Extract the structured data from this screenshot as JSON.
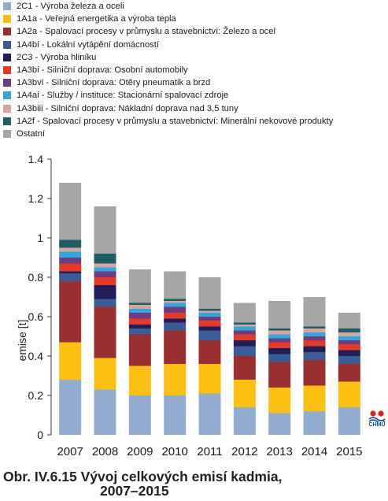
{
  "chart_data": {
    "type": "bar",
    "stacked": true,
    "categories": [
      "2007",
      "2008",
      "2009",
      "2010",
      "2011",
      "2012",
      "2013",
      "2014",
      "2015"
    ],
    "ylabel": "emise [t]",
    "ylim": [
      0,
      1.4
    ],
    "yticks": [
      "0",
      "0.2",
      "0.4",
      "0.6",
      "0.8",
      "1",
      "1.2",
      "1.4"
    ],
    "grid": false,
    "legend_position": "top",
    "series": [
      {
        "name": "2C1 - Výroba železa a oceli",
        "color": "#92acd0",
        "values": [
          0.28,
          0.23,
          0.2,
          0.2,
          0.21,
          0.14,
          0.11,
          0.12,
          0.14
        ]
      },
      {
        "name": "1A1a - Veřejná energetika a výroba tepla",
        "color": "#fbc012",
        "values": [
          0.19,
          0.16,
          0.15,
          0.16,
          0.15,
          0.14,
          0.13,
          0.13,
          0.13
        ]
      },
      {
        "name": "1A2a - Spalovací procesy v průmyslu a stavebnictví: Železo a ocel",
        "color": "#9a2f32",
        "values": [
          0.31,
          0.26,
          0.16,
          0.17,
          0.12,
          0.12,
          0.13,
          0.13,
          0.09
        ]
      },
      {
        "name": "1A4bi - Lokální vytápění domácností",
        "color": "#3a5c97",
        "values": [
          0.04,
          0.04,
          0.03,
          0.04,
          0.05,
          0.05,
          0.04,
          0.04,
          0.04
        ]
      },
      {
        "name": "2C3 - Výroba hliníku",
        "color": "#221e58",
        "values": [
          0.01,
          0.07,
          0.02,
          0.02,
          0.02,
          0.03,
          0.03,
          0.03,
          0.03
        ]
      },
      {
        "name": "1A3bi - Silniční doprava: Osobní automobily",
        "color": "#e63a26",
        "values": [
          0.04,
          0.04,
          0.03,
          0.03,
          0.03,
          0.03,
          0.03,
          0.03,
          0.03
        ]
      },
      {
        "name": "1A3bvi - Silniční doprava: Otěry pneumatik a brzd",
        "color": "#6e3c82",
        "values": [
          0.03,
          0.03,
          0.03,
          0.03,
          0.02,
          0.02,
          0.02,
          0.02,
          0.02
        ]
      },
      {
        "name": "1A4ai - Služby / instituce: Stacionární spalovací zdroje",
        "color": "#2ea9dd",
        "values": [
          0.03,
          0.02,
          0.02,
          0.02,
          0.02,
          0.02,
          0.02,
          0.02,
          0.02
        ]
      },
      {
        "name": "1A3biii - Silniční doprava: Nákladní doprava nad 3,5 tuny",
        "color": "#d9a3a0",
        "values": [
          0.02,
          0.02,
          0.02,
          0.01,
          0.01,
          0.01,
          0.02,
          0.02,
          0.02
        ]
      },
      {
        "name": "1A2f - Spalovací procesy v průmyslu a stavebnictví: Minerální nekovové produkty",
        "color": "#1c5e64",
        "values": [
          0.04,
          0.05,
          0.01,
          0.01,
          0.01,
          0.01,
          0.01,
          0.01,
          0.02
        ]
      },
      {
        "name": "Ostatní",
        "color": "#a6a6a6",
        "values": [
          0.29,
          0.24,
          0.17,
          0.14,
          0.16,
          0.1,
          0.14,
          0.15,
          0.08
        ]
      }
    ]
  },
  "caption": {
    "line1": "Obr. IV.6.15  Vývoj celkových emisí kadmia,",
    "line2": "2007–2015"
  },
  "logo": {
    "text": "CHMÚ",
    "icon": "chmu-logo-icon",
    "colors": [
      "#e31e24",
      "#0a4aa0"
    ]
  }
}
